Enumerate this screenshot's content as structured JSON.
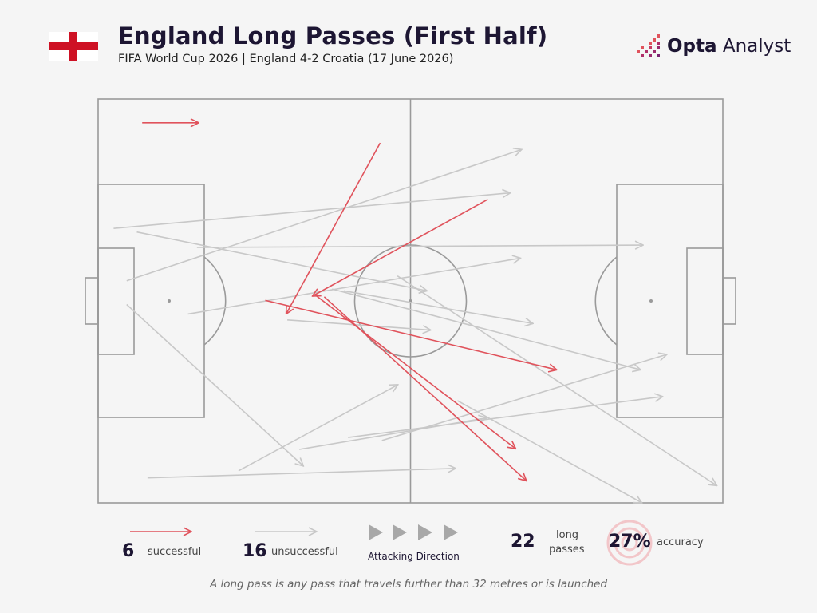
{
  "header": {
    "title": "England Long Passes (First Half)",
    "subtitle": "FIFA World Cup 2026 | England 4-2 Croatia (17 June 2026)",
    "brand_bold": "Opta",
    "brand_rest": " Analyst"
  },
  "colors": {
    "successful": "#e0535c",
    "unsuccessful": "#c8c8c8",
    "pitch_lines": "#9a9a9a",
    "background": "#f5f5f5",
    "flag_red": "#ce1124",
    "title": "#1d1633"
  },
  "legend": {
    "successful_count": "6",
    "successful_label": "successful",
    "unsuccessful_count": "16",
    "unsuccessful_label": "unsuccessful",
    "direction_label": "Attacking Direction",
    "total_count": "22",
    "total_label_line1": "long",
    "total_label_line2": "passes",
    "accuracy_value": "27%",
    "accuracy_label": "accuracy"
  },
  "footnote": "A long pass is any pass that travels further than 32 metres or is launched",
  "chart_data": {
    "type": "scatter",
    "description_units": "pitch coordinates in metres, x along length (0-105, England attacking left to right), y across width (0-68, 0 = top touchline)",
    "pitch": {
      "length": 105,
      "width": 68
    },
    "passes": [
      {
        "x1": 7.4,
        "y1": 4.0,
        "x2": 16.9,
        "y2": 4.0,
        "outcome": "successful"
      },
      {
        "x1": 47.4,
        "y1": 7.4,
        "x2": 31.6,
        "y2": 36.2,
        "outcome": "successful"
      },
      {
        "x1": 65.5,
        "y1": 16.9,
        "x2": 36.0,
        "y2": 33.2,
        "outcome": "successful"
      },
      {
        "x1": 28.1,
        "y1": 33.9,
        "x2": 77.1,
        "y2": 45.6,
        "outcome": "successful"
      },
      {
        "x1": 36.5,
        "y1": 33.0,
        "x2": 70.2,
        "y2": 58.9,
        "outcome": "successful"
      },
      {
        "x1": 38.0,
        "y1": 33.3,
        "x2": 72.0,
        "y2": 64.3,
        "outcome": "successful"
      },
      {
        "x1": 4.8,
        "y1": 30.6,
        "x2": 71.2,
        "y2": 8.5,
        "outcome": "unsuccessful"
      },
      {
        "x1": 6.5,
        "y1": 22.4,
        "x2": 55.3,
        "y2": 32.3,
        "outcome": "unsuccessful"
      },
      {
        "x1": 16.6,
        "y1": 25.0,
        "x2": 91.6,
        "y2": 24.6,
        "outcome": "unsuccessful"
      },
      {
        "x1": 15.1,
        "y1": 36.2,
        "x2": 71.0,
        "y2": 26.8,
        "outcome": "unsuccessful"
      },
      {
        "x1": 4.8,
        "y1": 34.6,
        "x2": 34.5,
        "y2": 61.8,
        "outcome": "unsuccessful"
      },
      {
        "x1": 2.6,
        "y1": 21.8,
        "x2": 69.3,
        "y2": 15.8,
        "outcome": "unsuccessful"
      },
      {
        "x1": 8.3,
        "y1": 63.8,
        "x2": 60.1,
        "y2": 62.2,
        "outcome": "unsuccessful"
      },
      {
        "x1": 23.6,
        "y1": 62.6,
        "x2": 50.4,
        "y2": 48.1,
        "outcome": "unsuccessful"
      },
      {
        "x1": 33.8,
        "y1": 59.0,
        "x2": 65.3,
        "y2": 53.7,
        "outcome": "unsuccessful"
      },
      {
        "x1": 47.7,
        "y1": 57.5,
        "x2": 95.6,
        "y2": 43.0,
        "outcome": "unsuccessful"
      },
      {
        "x1": 41.3,
        "y1": 32.3,
        "x2": 73.1,
        "y2": 37.8,
        "outcome": "unsuccessful"
      },
      {
        "x1": 50.3,
        "y1": 29.8,
        "x2": 104.0,
        "y2": 65.1,
        "outcome": "unsuccessful"
      },
      {
        "x1": 39.3,
        "y1": 32.0,
        "x2": 91.2,
        "y2": 45.6,
        "outcome": "unsuccessful"
      },
      {
        "x1": 31.8,
        "y1": 37.2,
        "x2": 55.9,
        "y2": 38.9,
        "outcome": "unsuccessful"
      },
      {
        "x1": 42.0,
        "y1": 57.0,
        "x2": 94.9,
        "y2": 50.1,
        "outcome": "unsuccessful"
      },
      {
        "x1": 60.4,
        "y1": 50.8,
        "x2": 91.4,
        "y2": 68.0,
        "outcome": "unsuccessful"
      }
    ]
  }
}
